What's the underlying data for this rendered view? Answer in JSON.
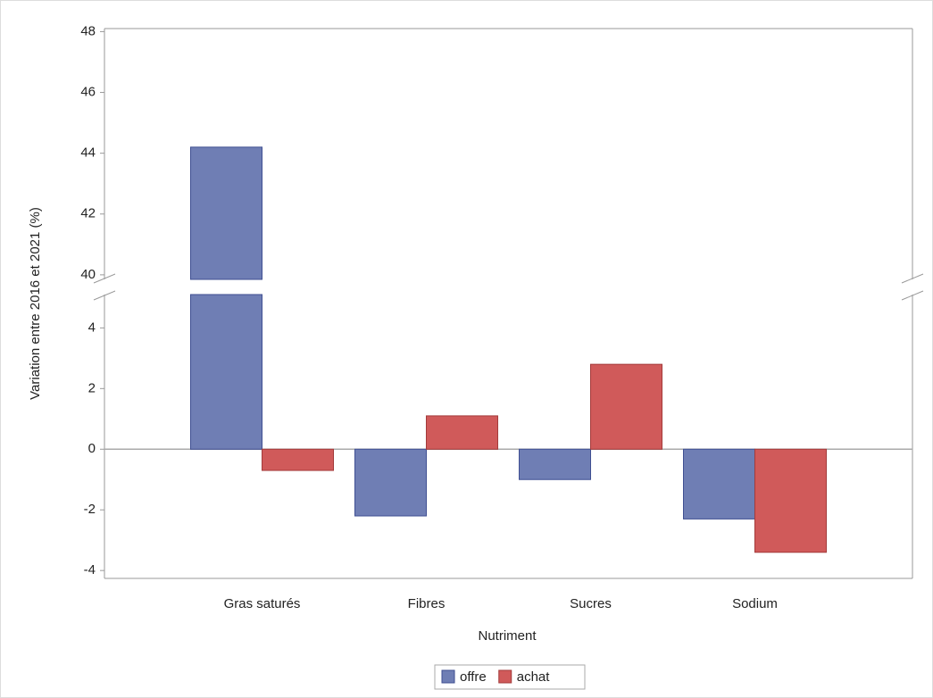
{
  "chart_data": {
    "type": "bar",
    "x_label": "Nutriment",
    "y_label": "Variation entre 2016 et 2021 (%)",
    "categories": [
      "Gras saturés",
      "Fibres",
      "Sucres",
      "Sodium"
    ],
    "series": [
      {
        "name": "offre",
        "color": "#6f7eb4",
        "values": [
          44.2,
          -2.2,
          -1.0,
          -2.3
        ]
      },
      {
        "name": "achat",
        "color": "#d05a5a",
        "values": [
          -0.7,
          1.1,
          2.8,
          -3.4
        ]
      }
    ],
    "ylim": [
      -4.26,
      48.1
    ],
    "y_break": [
      5.1,
      39.85
    ],
    "yticks": [
      -4,
      -2,
      0,
      2,
      4,
      40,
      42,
      44,
      46,
      48
    ],
    "legend": "bottom"
  }
}
